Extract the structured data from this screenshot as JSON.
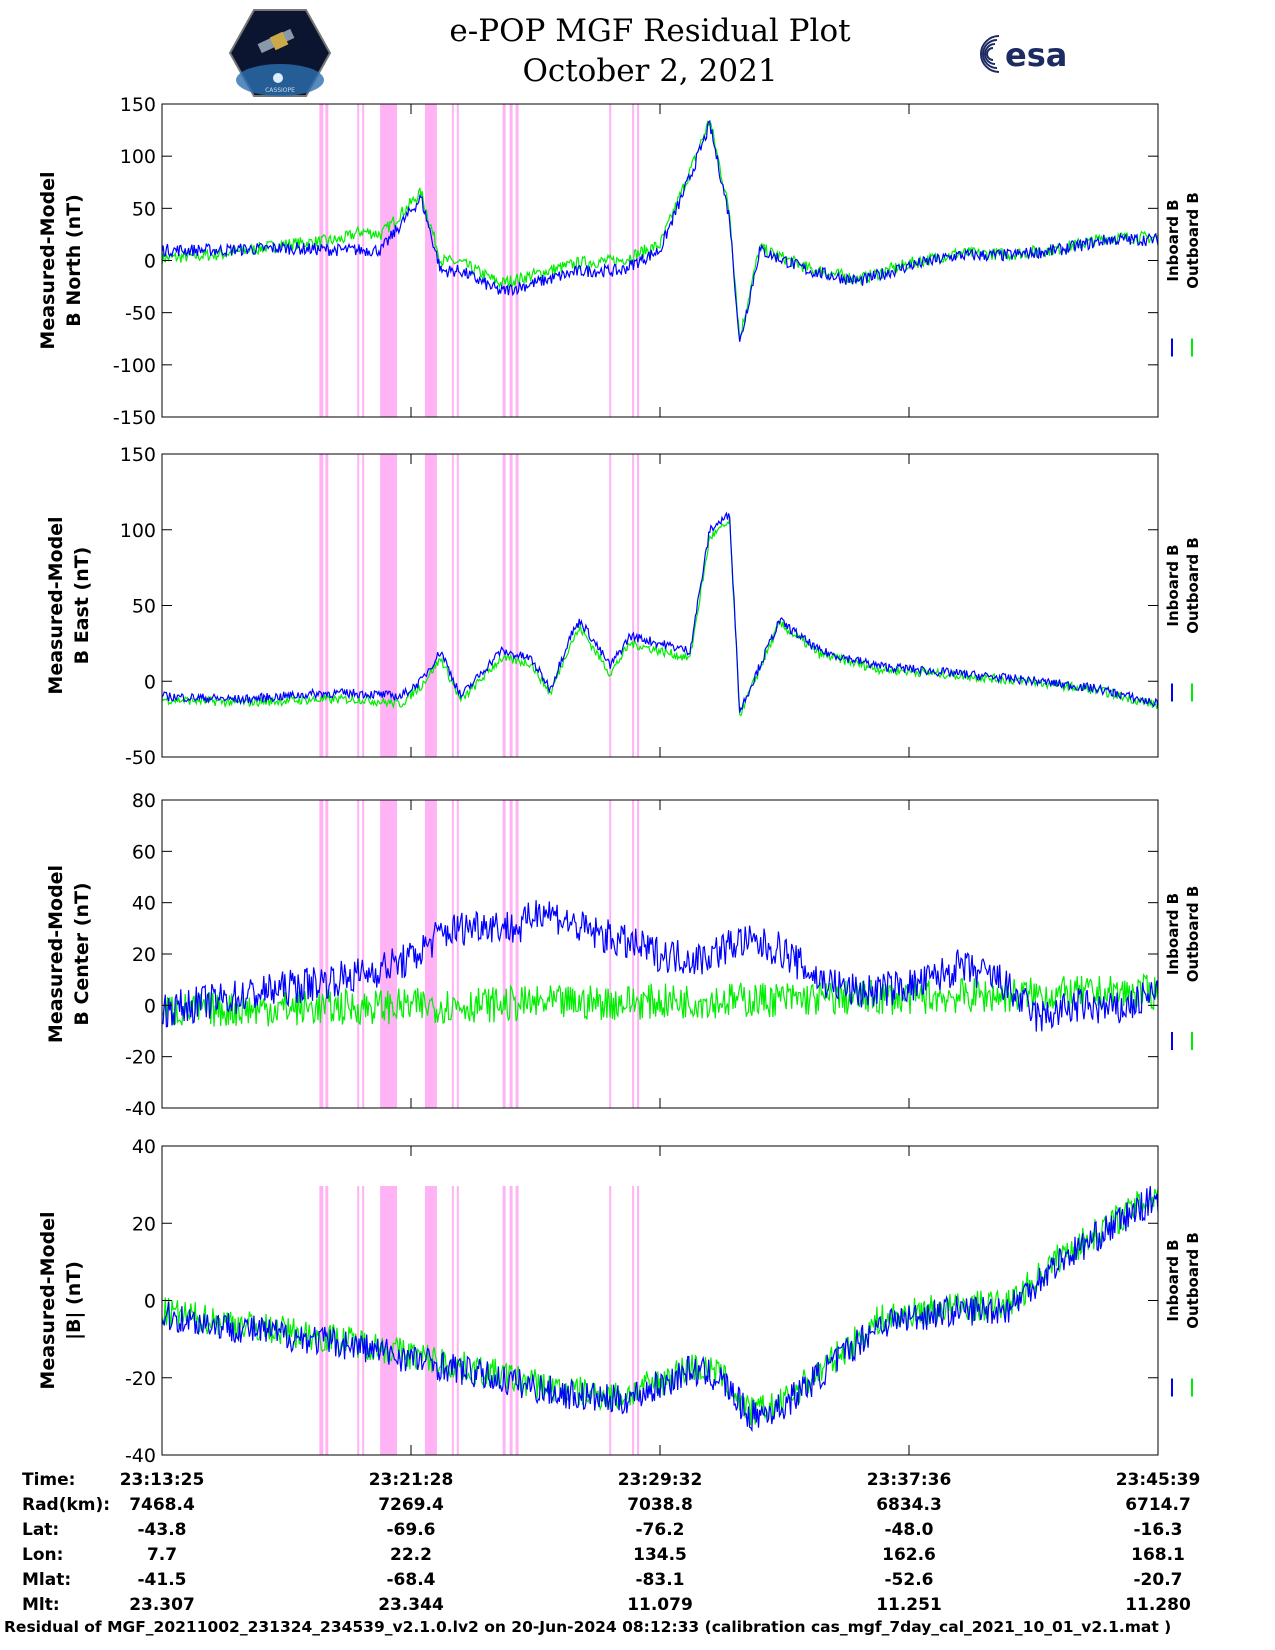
{
  "header": {
    "title_line1": "e-POP MGF Residual Plot",
    "title_line2": "October 2, 2021",
    "left_logo_text": "CASSIOPE",
    "right_logo_text": "esa"
  },
  "colors": {
    "inboard": "#0000ff",
    "outboard": "#00ee00",
    "highlight": "#ffb3f5",
    "axis": "#000000"
  },
  "chart_data": [
    {
      "type": "line",
      "ylabel": [
        "Measured-Model",
        "B North (nT)"
      ],
      "ylim": [
        -150,
        150
      ],
      "yticks": [
        -150,
        -100,
        -50,
        0,
        50,
        100,
        150
      ],
      "legend": [
        "Inboard B",
        "Outboard B"
      ],
      "legend_placement": "right",
      "series": [
        {
          "name": "Inboard B",
          "x_frac": [
            0,
            0.06,
            0.12,
            0.18,
            0.2,
            0.22,
            0.26,
            0.28,
            0.3,
            0.34,
            0.38,
            0.42,
            0.46,
            0.5,
            0.53,
            0.55,
            0.57,
            0.58,
            0.6,
            0.65,
            0.7,
            0.75,
            0.8,
            0.85,
            0.9,
            0.95,
            1.0
          ],
          "values": [
            10,
            10,
            12,
            10,
            10,
            10,
            60,
            -10,
            -10,
            -30,
            -20,
            -10,
            -10,
            10,
            80,
            130,
            40,
            -80,
            10,
            -10,
            -20,
            -5,
            5,
            5,
            10,
            20,
            20
          ]
        },
        {
          "name": "Outboard B",
          "x_frac": [
            0,
            0.06,
            0.12,
            0.18,
            0.2,
            0.22,
            0.26,
            0.28,
            0.3,
            0.34,
            0.38,
            0.42,
            0.46,
            0.5,
            0.53,
            0.55,
            0.57,
            0.58,
            0.6,
            0.65,
            0.7,
            0.75,
            0.8,
            0.85,
            0.9,
            0.95,
            1.0
          ],
          "values": [
            2,
            6,
            15,
            20,
            28,
            25,
            65,
            0,
            -2,
            -22,
            -12,
            -2,
            0,
            15,
            85,
            135,
            45,
            -75,
            12,
            -8,
            -18,
            -3,
            7,
            6,
            11,
            22,
            22
          ]
        }
      ]
    },
    {
      "type": "line",
      "ylabel": [
        "Measured-Model",
        "B East (nT)"
      ],
      "ylim": [
        -50,
        150
      ],
      "yticks": [
        -50,
        0,
        50,
        100,
        150
      ],
      "legend": [
        "Inboard B",
        "Outboard B"
      ],
      "legend_placement": "right",
      "series": [
        {
          "name": "Inboard B",
          "x_frac": [
            0,
            0.08,
            0.16,
            0.2,
            0.24,
            0.26,
            0.28,
            0.3,
            0.34,
            0.37,
            0.39,
            0.41,
            0.42,
            0.45,
            0.47,
            0.5,
            0.53,
            0.55,
            0.57,
            0.58,
            0.6,
            0.62,
            0.66,
            0.72,
            0.8,
            0.88,
            0.94,
            1.0
          ],
          "values": [
            -10,
            -12,
            -8,
            -8,
            -10,
            0,
            20,
            -10,
            20,
            15,
            -5,
            30,
            40,
            10,
            30,
            25,
            20,
            100,
            110,
            -20,
            10,
            40,
            20,
            10,
            5,
            0,
            -5,
            -15
          ]
        },
        {
          "name": "Outboard B",
          "x_frac": [
            0,
            0.08,
            0.16,
            0.2,
            0.24,
            0.26,
            0.28,
            0.3,
            0.34,
            0.37,
            0.39,
            0.41,
            0.42,
            0.45,
            0.47,
            0.5,
            0.53,
            0.55,
            0.57,
            0.58,
            0.6,
            0.62,
            0.66,
            0.72,
            0.8,
            0.88,
            0.94,
            1.0
          ],
          "values": [
            -12,
            -14,
            -12,
            -12,
            -15,
            -3,
            15,
            -13,
            15,
            12,
            -8,
            25,
            35,
            5,
            25,
            20,
            15,
            95,
            105,
            -22,
            8,
            38,
            18,
            8,
            4,
            -1,
            -6,
            -16
          ]
        }
      ]
    },
    {
      "type": "line",
      "ylabel": [
        "Measured-Model",
        "B Center (nT)"
      ],
      "ylim": [
        -40,
        80
      ],
      "yticks": [
        -40,
        -20,
        0,
        20,
        40,
        60,
        80
      ],
      "legend": [
        "Inboard B",
        "Outboard B"
      ],
      "legend_placement": "right",
      "series": [
        {
          "name": "Inboard B",
          "x_frac": [
            0,
            0.1,
            0.2,
            0.25,
            0.28,
            0.32,
            0.36,
            0.38,
            0.42,
            0.46,
            0.5,
            0.54,
            0.58,
            0.62,
            0.66,
            0.7,
            0.76,
            0.8,
            0.84,
            0.88,
            0.92,
            0.96,
            1.0
          ],
          "values": [
            -2,
            5,
            12,
            18,
            28,
            32,
            30,
            38,
            30,
            25,
            20,
            18,
            25,
            22,
            10,
            5,
            8,
            15,
            10,
            -5,
            0,
            -2,
            5
          ]
        },
        {
          "name": "Outboard B",
          "x_frac": [
            0,
            1.0
          ],
          "values": [
            -2,
            5
          ]
        }
      ]
    },
    {
      "type": "line",
      "ylabel": [
        "Measured-Model",
        "|B| (nT)"
      ],
      "ylim": [
        -40,
        40
      ],
      "yticks": [
        -40,
        -20,
        0,
        20,
        40
      ],
      "legend": [
        "Inboard B",
        "Outboard B"
      ],
      "legend_placement": "right",
      "series": [
        {
          "name": "Inboard B",
          "x_frac": [
            0,
            0.1,
            0.2,
            0.3,
            0.4,
            0.46,
            0.5,
            0.53,
            0.56,
            0.59,
            0.62,
            0.68,
            0.72,
            0.78,
            0.85,
            0.9,
            1.0
          ],
          "values": [
            -4,
            -8,
            -12,
            -18,
            -24,
            -26,
            -22,
            -18,
            -20,
            -30,
            -28,
            -15,
            -6,
            -3,
            -2,
            10,
            27
          ]
        },
        {
          "name": "Outboard B",
          "x_frac": [
            0,
            0.1,
            0.2,
            0.3,
            0.4,
            0.46,
            0.5,
            0.53,
            0.56,
            0.59,
            0.62,
            0.68,
            0.72,
            0.78,
            0.85,
            0.9,
            1.0
          ],
          "values": [
            -3,
            -7,
            -11,
            -17,
            -23,
            -25,
            -21,
            -17,
            -19,
            -29,
            -27,
            -14,
            -5,
            -2,
            -1,
            11,
            28
          ]
        }
      ]
    }
  ],
  "highlight_bands_frac": [
    [
      0.158,
      0.162
    ],
    [
      0.164,
      0.167
    ],
    [
      0.196,
      0.198
    ],
    [
      0.201,
      0.203
    ],
    [
      0.219,
      0.236
    ],
    [
      0.264,
      0.276
    ],
    [
      0.291,
      0.293
    ],
    [
      0.296,
      0.298
    ],
    [
      0.342,
      0.345
    ],
    [
      0.349,
      0.352
    ],
    [
      0.355,
      0.358
    ],
    [
      0.449,
      0.451
    ],
    [
      0.472,
      0.474
    ],
    [
      0.477,
      0.479
    ]
  ],
  "x_ticks": [
    "23:13:25",
    "23:21:28",
    "23:29:32",
    "23:37:36",
    "23:45:39"
  ],
  "info_table": [
    {
      "label": "Time:",
      "values": [
        "23:13:25",
        "23:21:28",
        "23:29:32",
        "23:37:36",
        "23:45:39"
      ]
    },
    {
      "label": "Rad(km):",
      "values": [
        "7468.4",
        "7269.4",
        "7038.8",
        "6834.3",
        "6714.7"
      ]
    },
    {
      "label": "Lat:",
      "values": [
        "-43.8",
        "-69.6",
        "-76.2",
        "-48.0",
        "-16.3"
      ]
    },
    {
      "label": "Lon:",
      "values": [
        "7.7",
        "22.2",
        "134.5",
        "162.6",
        "168.1"
      ]
    },
    {
      "label": "Mlat:",
      "values": [
        "-41.5",
        "-68.4",
        "-83.1",
        "-52.6",
        "-20.7"
      ]
    },
    {
      "label": "Mlt:",
      "values": [
        "23.307",
        "23.344",
        "11.079",
        "11.251",
        "11.280"
      ]
    }
  ],
  "footer": "Residual of MGF_20211002_231324_234539_v2.1.0.lv2 on 20-Jun-2024 08:12:33 (calibration cas_mgf_7day_cal_2021_10_01_v2.1.mat )"
}
